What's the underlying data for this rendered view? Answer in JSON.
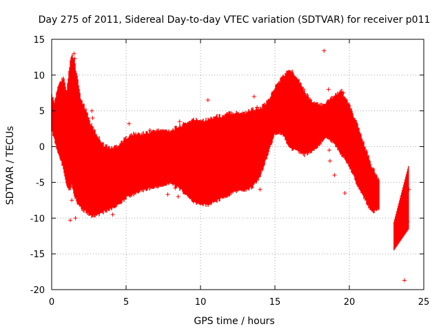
{
  "chart_data": {
    "type": "scatter",
    "title": "Day 275 of 2011, Sidereal Day-to-day VTEC variation (SDTVAR) for receiver p011",
    "xlabel": "GPS time / hours",
    "ylabel": "SDTVAR / TECUs",
    "xlim": [
      0,
      25
    ],
    "ylim": [
      -20,
      15
    ],
    "xticks": [
      0,
      5,
      10,
      15,
      20,
      25
    ],
    "yticks": [
      -20,
      -15,
      -10,
      -5,
      0,
      5,
      10,
      15
    ],
    "grid": true,
    "marker": "+",
    "color": "#ff0000",
    "series": [
      {
        "name": "SDTVAR",
        "envelope": {
          "x": [
            0.0,
            0.2,
            0.5,
            0.8,
            1.0,
            1.2,
            1.35,
            1.5,
            1.7,
            2.0,
            2.3,
            2.6,
            3.0,
            3.5,
            4.0,
            4.5,
            5.0,
            5.5,
            6.0,
            7.0,
            8.0,
            8.5,
            9.0,
            9.5,
            10.0,
            10.5,
            11.0,
            11.5,
            12.0,
            12.5,
            13.0,
            13.5,
            14.0,
            14.5,
            15.0,
            15.5,
            16.0,
            16.5,
            17.0,
            17.5,
            18.0,
            18.5,
            19.0,
            19.5,
            20.0,
            20.5,
            21.0,
            21.5,
            22.0
          ],
          "upper": [
            7.0,
            6.0,
            8.5,
            9.5,
            7.0,
            11.0,
            12.5,
            12.0,
            9.5,
            6.0,
            5.0,
            3.0,
            1.5,
            0.0,
            -0.5,
            0.0,
            1.0,
            1.5,
            1.5,
            2.0,
            2.0,
            2.5,
            3.0,
            3.5,
            3.5,
            3.5,
            4.0,
            4.0,
            4.5,
            4.5,
            4.5,
            5.0,
            5.0,
            6.0,
            8.0,
            9.5,
            10.5,
            9.5,
            7.5,
            6.0,
            5.5,
            6.0,
            7.0,
            7.5,
            5.5,
            3.0,
            0.0,
            -3.0,
            -5.0
          ],
          "lower": [
            2.5,
            1.0,
            -1.0,
            -3.0,
            -5.0,
            -6.0,
            -5.0,
            -6.5,
            -7.5,
            -8.5,
            -9.0,
            -9.5,
            -9.5,
            -9.0,
            -8.5,
            -8.0,
            -7.0,
            -6.5,
            -6.0,
            -5.5,
            -5.0,
            -5.5,
            -6.5,
            -7.5,
            -8.0,
            -8.0,
            -7.5,
            -7.0,
            -6.5,
            -6.0,
            -6.0,
            -5.5,
            -4.0,
            -1.0,
            2.0,
            2.0,
            0.0,
            -0.5,
            -1.0,
            -0.5,
            0.5,
            1.5,
            0.5,
            -1.0,
            -2.5,
            -5.0,
            -7.0,
            -9.0,
            -8.5
          ]
        },
        "late_segment": {
          "x_range": [
            23.0,
            24.0
          ],
          "y_range": [
            -14.5,
            -2.5
          ]
        },
        "points": [
          {
            "x": 1.25,
            "y": -10.3
          },
          {
            "x": 1.6,
            "y": -10.0
          },
          {
            "x": 1.35,
            "y": -7.5
          },
          {
            "x": 2.7,
            "y": 5.0
          },
          {
            "x": 2.75,
            "y": 4.0
          },
          {
            "x": 4.1,
            "y": -9.5
          },
          {
            "x": 5.2,
            "y": 3.2
          },
          {
            "x": 6.6,
            "y": 2.3
          },
          {
            "x": 7.3,
            "y": 2.1
          },
          {
            "x": 7.8,
            "y": -6.7
          },
          {
            "x": 8.3,
            "y": -5.8
          },
          {
            "x": 8.5,
            "y": -7.0
          },
          {
            "x": 8.6,
            "y": 3.5
          },
          {
            "x": 10.5,
            "y": 6.5
          },
          {
            "x": 13.6,
            "y": 7.0
          },
          {
            "x": 13.8,
            "y": 5.5
          },
          {
            "x": 14.0,
            "y": -6.0
          },
          {
            "x": 18.3,
            "y": 13.4
          },
          {
            "x": 18.6,
            "y": 8.0
          },
          {
            "x": 18.65,
            "y": -0.5
          },
          {
            "x": 18.7,
            "y": -2.0
          },
          {
            "x": 19.0,
            "y": -4.0
          },
          {
            "x": 19.6,
            "y": 7.5
          },
          {
            "x": 19.7,
            "y": -6.5
          },
          {
            "x": 23.7,
            "y": -18.7
          },
          {
            "x": 23.9,
            "y": -10.5
          },
          {
            "x": 24.0,
            "y": -6.0
          },
          {
            "x": 1.5,
            "y": 13.0
          },
          {
            "x": 1.55,
            "y": 12.3
          }
        ]
      }
    ]
  }
}
